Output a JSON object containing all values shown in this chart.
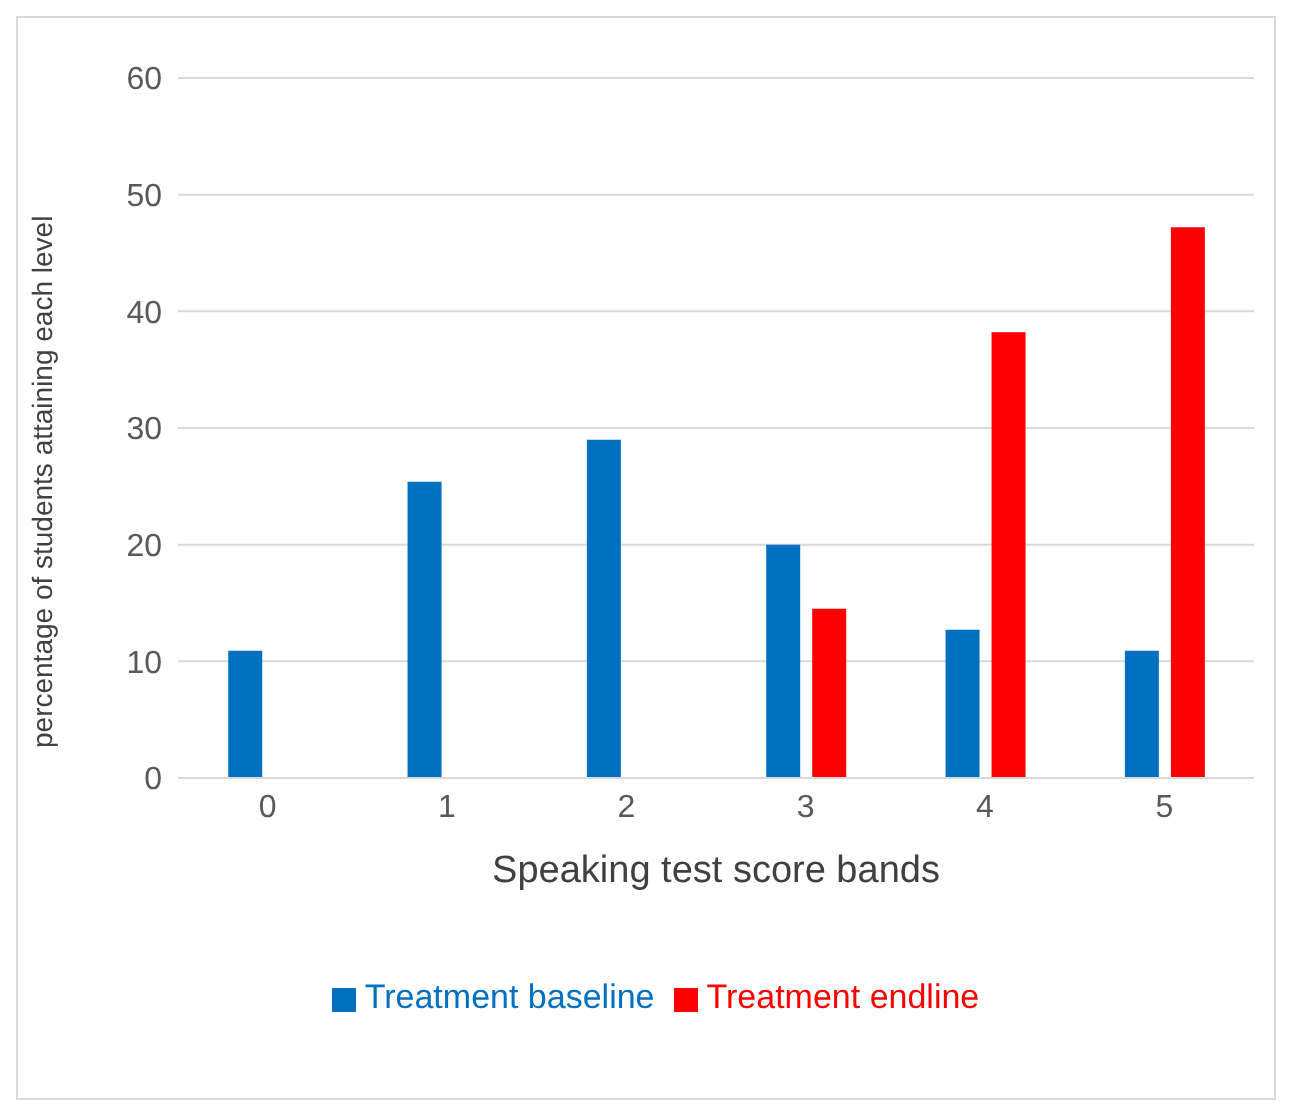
{
  "chart_data": {
    "type": "bar",
    "xlabel": "Speaking test score bands",
    "ylabel": "percentage of students attaining each level",
    "categories": [
      "0",
      "1",
      "2",
      "3",
      "4",
      "5"
    ],
    "series": [
      {
        "name": "Treatment baseline",
        "color": "#0070c0",
        "values": [
          10.9,
          25.4,
          29.0,
          20.0,
          12.7,
          10.9
        ]
      },
      {
        "name": "Treatment endline",
        "color": "#ff0000",
        "values": [
          0,
          0,
          0,
          14.5,
          38.2,
          47.2
        ]
      }
    ],
    "ylim": [
      0,
      60
    ],
    "yticks": [
      0,
      10,
      20,
      30,
      40,
      50,
      60
    ],
    "grid": "y",
    "legend": "bottom"
  }
}
